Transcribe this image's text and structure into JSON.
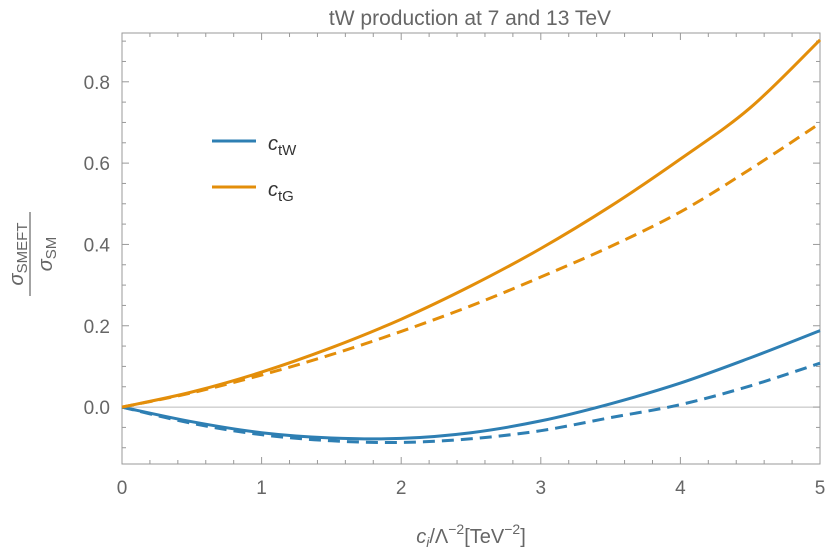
{
  "chart_data": {
    "type": "line",
    "title": "tW production at 7 and 13 TeV",
    "xlabel": {
      "base": "c",
      "sub": "i",
      "mid": "/Λ",
      "sup1": "−2",
      "unit": "[TeV",
      "sup2": "−2",
      "close": "]"
    },
    "ylabel": {
      "num": "σ",
      "num_sub": "SMEFT",
      "den": "σ",
      "den_sub": "SM"
    },
    "xlim": [
      0,
      5
    ],
    "ylim": [
      -0.14,
      0.92
    ],
    "x_ticks": [
      0,
      1,
      2,
      3,
      4,
      5
    ],
    "x_tick_labels": [
      "0",
      "1",
      "2",
      "3",
      "4",
      "5"
    ],
    "y_ticks": [
      0.0,
      0.2,
      0.4,
      0.6,
      0.8
    ],
    "y_tick_labels": [
      "0.0",
      "0.2",
      "0.4",
      "0.6",
      "0.8"
    ],
    "legend": [
      {
        "label_base": "c",
        "label_sub": "tW",
        "color": "#2e7fb3"
      },
      {
        "label_base": "c",
        "label_sub": "tG",
        "color": "#e38e0a"
      }
    ],
    "x": [
      0,
      0.5,
      1,
      1.5,
      2,
      2.5,
      3,
      3.5,
      4,
      4.5,
      5
    ],
    "series": [
      {
        "name": "c_tW 13 TeV (solid)",
        "color": "#2e7fb3",
        "dash": "solid",
        "values": [
          0,
          -0.036,
          -0.063,
          -0.076,
          -0.077,
          -0.063,
          -0.034,
          0.008,
          0.059,
          0.121,
          0.188
        ]
      },
      {
        "name": "c_tW 7 TeV (dashed)",
        "color": "#2e7fb3",
        "dash": "dashed",
        "values": [
          0,
          -0.04,
          -0.068,
          -0.083,
          -0.087,
          -0.078,
          -0.058,
          -0.026,
          0.006,
          0.052,
          0.108
        ]
      },
      {
        "name": "c_tG 13 TeV (solid)",
        "color": "#e38e0a",
        "dash": "solid",
        "values": [
          0,
          0.037,
          0.086,
          0.146,
          0.216,
          0.298,
          0.39,
          0.494,
          0.61,
          0.736,
          0.903
        ]
      },
      {
        "name": "c_tG 7 TeV (dashed)",
        "color": "#e38e0a",
        "dash": "dashed",
        "values": [
          0,
          0.035,
          0.079,
          0.129,
          0.186,
          0.249,
          0.32,
          0.395,
          0.48,
          0.585,
          0.698
        ]
      }
    ],
    "baseline": 0
  }
}
